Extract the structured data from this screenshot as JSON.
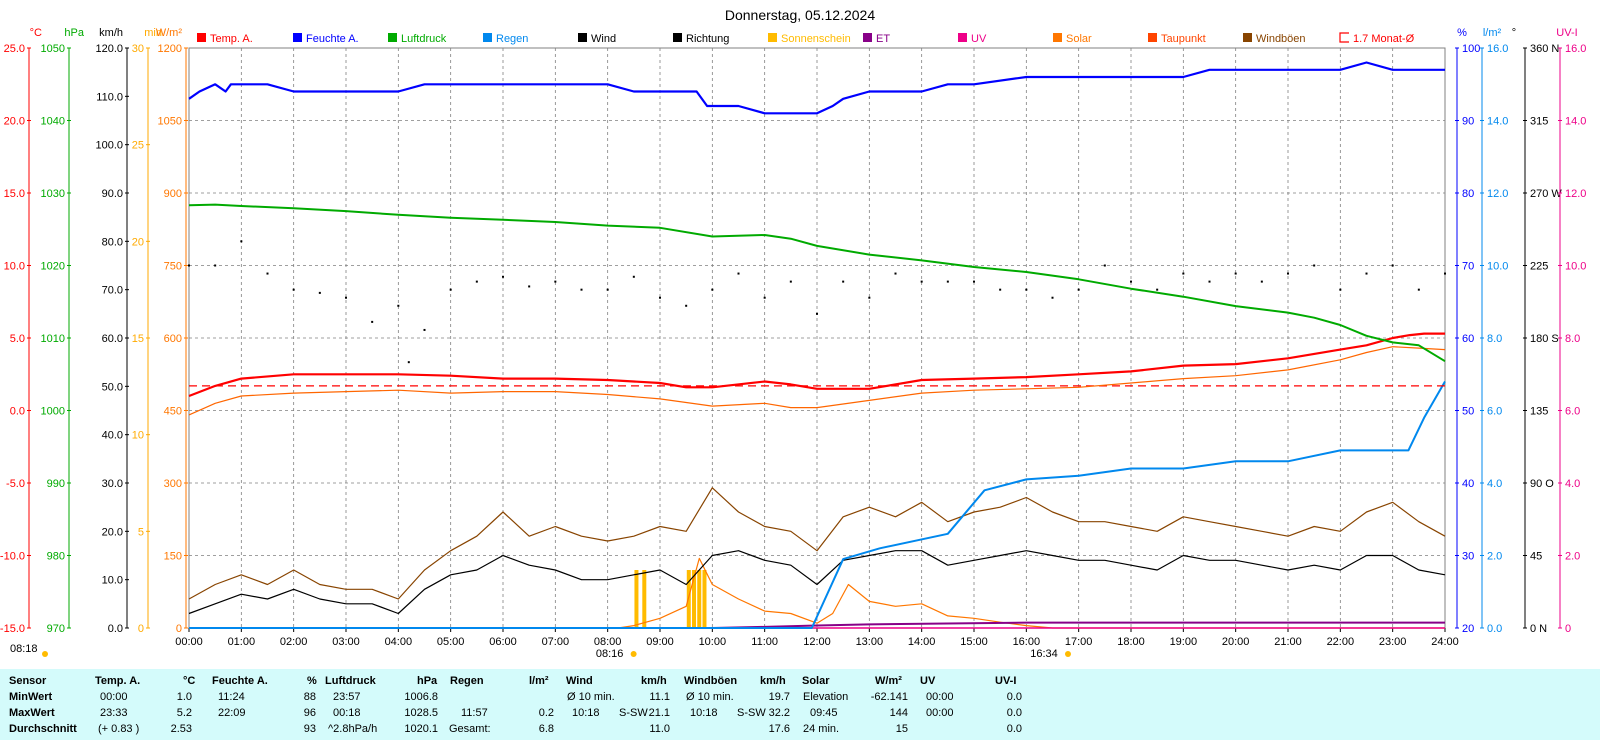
{
  "title": "Donnerstag, 05.12.2024",
  "colors": {
    "temp": "#ff0000",
    "humidity": "#0000ff",
    "pressure": "#00aa00",
    "rain": "#0088ee",
    "wind": "#000000",
    "sunshine": "#ffbb00",
    "solar": "#ff7700",
    "dewpoint": "#ff6600",
    "gusts": "#884400",
    "et": "#880088",
    "uv": "#ee0088",
    "grid": "#808080",
    "stats_bg": "#d4fbfb"
  },
  "legend": [
    {
      "label": "Temp. A.",
      "color": "#ff0000",
      "icon": "filled-square"
    },
    {
      "label": "Feuchte A.",
      "color": "#0000ff",
      "icon": "filled-square"
    },
    {
      "label": "Luftdruck",
      "color": "#00aa00",
      "icon": "filled-square"
    },
    {
      "label": "Regen",
      "color": "#0088ee",
      "icon": "filled-square"
    },
    {
      "label": "Wind",
      "color": "#000000",
      "icon": "filled-square"
    },
    {
      "label": "Richtung",
      "color": "#000000",
      "icon": "filled-square"
    },
    {
      "label": "Sonnenschein",
      "color": "#ffbb00",
      "icon": "filled-square"
    },
    {
      "label": "ET",
      "color": "#880088",
      "icon": "filled-square"
    },
    {
      "label": "UV",
      "color": "#ee0088",
      "icon": "filled-square"
    },
    {
      "label": "Solar",
      "color": "#ff7700",
      "icon": "filled-square"
    },
    {
      "label": "Taupunkt",
      "color": "#ff4400",
      "icon": "filled-square"
    },
    {
      "label": "Windböen",
      "color": "#884400",
      "icon": "filled-square"
    },
    {
      "label": "1.7 Monat-Ø",
      "color": "#ff0000",
      "icon": "bracket-square"
    }
  ],
  "axes_left": [
    {
      "unit": "°C",
      "color": "#ff0000",
      "ticks": [
        "25.0",
        "20.0",
        "15.0",
        "10.0",
        "5.0",
        "0.0",
        "-5.0",
        "-10.0",
        "-15.0"
      ]
    },
    {
      "unit": "hPa",
      "color": "#00aa00",
      "ticks": [
        "1050",
        "1040",
        "1030",
        "1020",
        "1010",
        "1000",
        "990",
        "980",
        "970"
      ]
    },
    {
      "unit": "km/h",
      "color": "#000000",
      "ticks": [
        "120.0",
        "110.0",
        "100.0",
        "90.0",
        "80.0",
        "70.0",
        "60.0",
        "50.0",
        "40.0",
        "30.0",
        "20.0",
        "10.0",
        "0.0"
      ]
    },
    {
      "unit": "min",
      "color": "#ffaa00",
      "ticks": [
        "30",
        "25",
        "20",
        "15",
        "10",
        "5",
        "0"
      ]
    },
    {
      "unit": "W/m²",
      "color": "#ff7700",
      "ticks": [
        "1200",
        "1050",
        "900",
        "750",
        "600",
        "450",
        "300",
        "150",
        "0"
      ]
    }
  ],
  "axes_right": [
    {
      "unit": "%",
      "color": "#0000ff",
      "ticks": [
        "100",
        "90",
        "80",
        "70",
        "60",
        "50",
        "40",
        "30",
        "20"
      ]
    },
    {
      "unit": "l/m²",
      "color": "#0088ee",
      "ticks": [
        "16.0",
        "14.0",
        "12.0",
        "10.0",
        "8.0",
        "6.0",
        "4.0",
        "2.0",
        "0.0"
      ]
    },
    {
      "unit": "°",
      "color": "#000000",
      "ticks": [
        "360 N",
        "315",
        "270 W",
        "225",
        "180 S",
        "135",
        "90 O",
        "45",
        "0 N"
      ]
    },
    {
      "unit": "UV-I",
      "color": "#ee0088",
      "ticks": [
        "16.0",
        "14.0",
        "12.0",
        "10.0",
        "8.0",
        "6.0",
        "4.0",
        "2.0",
        "0"
      ]
    }
  ],
  "x_ticks": [
    "00:00",
    "01:00",
    "02:00",
    "03:00",
    "04:00",
    "05:00",
    "06:00",
    "07:00",
    "08:00",
    "09:00",
    "10:00",
    "11:00",
    "12:00",
    "13:00",
    "14:00",
    "15:00",
    "16:00",
    "17:00",
    "18:00",
    "19:00",
    "20:00",
    "21:00",
    "22:00",
    "23:00",
    "24:00"
  ],
  "sun": {
    "sunrise": "08:16",
    "sunset": "16:34",
    "daylength": "08:18"
  },
  "chart_data": {
    "type": "line",
    "title": "Donnerstag, 05.12.2024",
    "x_unit": "hours",
    "xlim": [
      0,
      24
    ],
    "series": [
      {
        "name": "Temp. A.",
        "unit": "°C",
        "ylim": [
          -15,
          25
        ],
        "x": [
          0,
          0.5,
          1,
          2,
          3,
          4,
          5,
          6,
          7,
          8,
          9,
          9.5,
          10,
          11,
          11.5,
          12,
          13,
          14,
          15,
          16,
          17,
          18,
          19,
          20,
          21,
          22,
          22.5,
          23,
          23.33,
          23.6,
          24
        ],
        "y": [
          1.0,
          1.7,
          2.2,
          2.5,
          2.5,
          2.5,
          2.4,
          2.2,
          2.2,
          2.1,
          1.9,
          1.6,
          1.6,
          2.0,
          1.8,
          1.5,
          1.5,
          2.1,
          2.2,
          2.3,
          2.5,
          2.7,
          3.1,
          3.2,
          3.6,
          4.2,
          4.5,
          5.0,
          5.2,
          5.3,
          5.3
        ]
      },
      {
        "name": "Taupunkt",
        "unit": "°C",
        "ylim": [
          -15,
          25
        ],
        "x": [
          0,
          0.5,
          1,
          2,
          3,
          4,
          5,
          6,
          7,
          8,
          9,
          10,
          11,
          11.5,
          12,
          13,
          14,
          15,
          16,
          17,
          18,
          19,
          20,
          21,
          22,
          22.5,
          23,
          23.5,
          24
        ],
        "y": [
          -0.3,
          0.5,
          1.0,
          1.2,
          1.3,
          1.4,
          1.2,
          1.3,
          1.3,
          1.1,
          0.8,
          0.3,
          0.5,
          0.2,
          0.2,
          0.7,
          1.2,
          1.4,
          1.5,
          1.6,
          1.9,
          2.2,
          2.4,
          2.8,
          3.5,
          4.0,
          4.4,
          4.3,
          4.2
        ]
      },
      {
        "name": "Feuchte A.",
        "unit": "%",
        "ylim": [
          20,
          100
        ],
        "x": [
          0,
          0.2,
          0.5,
          0.7,
          0.8,
          1,
          1.5,
          2,
          2.5,
          3,
          4,
          4.5,
          5,
          6,
          7,
          8,
          8.5,
          9,
          9.7,
          9.9,
          10,
          10.5,
          11,
          11.2,
          12,
          12.3,
          12.5,
          13,
          13.5,
          14,
          14.5,
          15,
          16,
          17,
          18,
          19,
          19.5,
          20,
          21,
          22,
          22.5,
          23,
          24
        ],
        "y": [
          93,
          94,
          95,
          94,
          95,
          95,
          95,
          94,
          94,
          94,
          94,
          95,
          95,
          95,
          95,
          95,
          94,
          94,
          94,
          92,
          92,
          92,
          91,
          91,
          91,
          92,
          93,
          94,
          94,
          94,
          95,
          95,
          96,
          96,
          96,
          96,
          97,
          97,
          97,
          97,
          98,
          97,
          97
        ]
      },
      {
        "name": "Luftdruck",
        "unit": "hPa",
        "ylim": [
          970,
          1050
        ],
        "x": [
          0,
          0.5,
          1,
          2,
          3,
          4,
          5,
          6,
          7,
          8,
          9,
          10,
          11,
          11.5,
          12,
          13,
          14,
          15,
          16,
          17,
          18,
          19,
          20,
          21,
          21.5,
          22,
          22.5,
          23,
          23.5,
          24
        ],
        "y": [
          1028.3,
          1028.4,
          1028.2,
          1027.9,
          1027.5,
          1027.0,
          1026.6,
          1026.3,
          1026.0,
          1025.5,
          1025.2,
          1024.0,
          1024.2,
          1023.7,
          1022.7,
          1021.5,
          1020.7,
          1019.8,
          1019.1,
          1018.1,
          1016.8,
          1015.7,
          1014.4,
          1013.5,
          1012.8,
          1011.8,
          1010.3,
          1009.4,
          1009.0,
          1006.8
        ]
      },
      {
        "name": "Regen",
        "unit": "l/m²",
        "ylim": [
          0,
          16
        ],
        "x": [
          0,
          11.9,
          12.5,
          13.2,
          14.5,
          15.2,
          16,
          17,
          18,
          19,
          20,
          21,
          22,
          23,
          23.3,
          23.6,
          24
        ],
        "y": [
          0,
          0,
          1.9,
          2.2,
          2.6,
          3.8,
          4.1,
          4.2,
          4.4,
          4.4,
          4.6,
          4.6,
          4.9,
          4.9,
          4.9,
          5.8,
          6.8
        ]
      },
      {
        "name": "Wind",
        "unit": "km/h",
        "ylim": [
          0,
          120
        ],
        "x": [
          0,
          0.5,
          1,
          1.5,
          2,
          2.5,
          3,
          3.5,
          4,
          4.5,
          5,
          5.5,
          6,
          6.5,
          7,
          7.5,
          8,
          8.5,
          9,
          9.5,
          10,
          10.5,
          11,
          11.5,
          12,
          12.5,
          13,
          13.5,
          14,
          14.5,
          15,
          15.5,
          16,
          16.5,
          17,
          17.5,
          18,
          18.5,
          19,
          19.5,
          20,
          20.5,
          21,
          21.5,
          22,
          22.5,
          23,
          23.5,
          24
        ],
        "y": [
          3,
          5,
          7,
          6,
          8,
          6,
          5,
          5,
          3,
          8,
          11,
          12,
          15,
          13,
          12,
          10,
          10,
          11,
          12,
          9,
          15,
          16,
          14,
          13,
          9,
          14,
          15,
          16,
          16,
          13,
          14,
          15,
          16,
          15,
          14,
          14,
          13,
          12,
          15,
          14,
          14,
          13,
          12,
          13,
          12,
          15,
          15,
          12,
          11
        ]
      },
      {
        "name": "Windböen",
        "unit": "km/h",
        "ylim": [
          0,
          120
        ],
        "x": [
          0,
          0.5,
          1,
          1.5,
          2,
          2.5,
          3,
          3.5,
          4,
          4.5,
          5,
          5.5,
          6,
          6.5,
          7,
          7.5,
          8,
          8.5,
          9,
          9.5,
          10,
          10.5,
          11,
          11.5,
          12,
          12.5,
          13,
          13.5,
          14,
          14.5,
          15,
          15.5,
          16,
          16.5,
          17,
          17.5,
          18,
          18.5,
          19,
          19.5,
          20,
          20.5,
          21,
          21.5,
          22,
          22.5,
          23,
          23.5,
          24
        ],
        "y": [
          6,
          9,
          11,
          9,
          12,
          9,
          8,
          8,
          6,
          12,
          16,
          19,
          24,
          19,
          21,
          19,
          18,
          19,
          21,
          20,
          29,
          24,
          21,
          20,
          16,
          23,
          25,
          23,
          26,
          22,
          24,
          25,
          27,
          24,
          22,
          22,
          21,
          20,
          23,
          22,
          21,
          20,
          19,
          21,
          20,
          24,
          26,
          22,
          19
        ]
      },
      {
        "name": "Richtung",
        "unit": "°",
        "ylim": [
          0,
          360
        ],
        "type": "scatter",
        "x": [
          0,
          0.5,
          1,
          1.5,
          2,
          2.5,
          3,
          3.5,
          4,
          4.2,
          4.5,
          5,
          5.5,
          6,
          6.5,
          7,
          7.5,
          8,
          8.5,
          9,
          9.5,
          10,
          10.5,
          11,
          11.5,
          12,
          12.5,
          13,
          13.5,
          14,
          14.5,
          15,
          15.5,
          16,
          16.5,
          17,
          17.5,
          18,
          18.5,
          19,
          19.5,
          20,
          20.5,
          21,
          21.5,
          22,
          22.5,
          23,
          23.5,
          24
        ],
        "y": [
          225,
          225,
          240,
          220,
          210,
          208,
          205,
          190,
          200,
          165,
          185,
          210,
          215,
          218,
          212,
          215,
          210,
          210,
          218,
          205,
          200,
          210,
          220,
          205,
          215,
          195,
          215,
          205,
          220,
          215,
          215,
          215,
          210,
          210,
          205,
          210,
          225,
          215,
          210,
          220,
          215,
          220,
          215,
          220,
          225,
          210,
          220,
          225,
          210,
          220
        ]
      },
      {
        "name": "Solar",
        "unit": "W/m²",
        "ylim": [
          0,
          1200
        ],
        "x": [
          0,
          8.2,
          8.5,
          9,
          9.5,
          9.75,
          10,
          10.5,
          11,
          11.5,
          12,
          12.3,
          12.6,
          13,
          13.5,
          14,
          14.5,
          15,
          15.5,
          16,
          16.5,
          24
        ],
        "y": [
          0,
          0,
          5,
          20,
          45,
          144,
          90,
          60,
          35,
          30,
          10,
          30,
          90,
          55,
          45,
          50,
          25,
          20,
          12,
          5,
          0,
          0
        ]
      },
      {
        "name": "Sonnenschein",
        "unit": "min",
        "ylim": [
          0,
          30
        ],
        "type": "bar",
        "x": [
          8.55,
          8.7,
          9.55,
          9.65,
          9.75,
          9.85
        ],
        "y": [
          3,
          3,
          3,
          3,
          3,
          3
        ]
      },
      {
        "name": "ET",
        "unit": "l/m²",
        "ylim": [
          0,
          16
        ],
        "x": [
          0,
          10,
          11,
          12,
          13,
          16,
          24
        ],
        "y": [
          0,
          0,
          0.03,
          0.07,
          0.1,
          0.15,
          0.15
        ]
      },
      {
        "name": "UV",
        "unit": "UV-I",
        "ylim": [
          0,
          16
        ],
        "x": [
          0,
          24
        ],
        "y": [
          0,
          0
        ]
      },
      {
        "name": "1.7 Monat-Ø",
        "unit": "°C",
        "ylim": [
          -15,
          25
        ],
        "style": "dashed",
        "x": [
          0,
          24
        ],
        "y": [
          1.7,
          1.7
        ]
      }
    ]
  },
  "stats": {
    "headers": [
      {
        "label": "Sensor",
        "unit": ""
      },
      {
        "label": "Temp. A.",
        "unit": "°C"
      },
      {
        "label": "Feuchte A.",
        "unit": "%"
      },
      {
        "label": "Luftdruck",
        "unit": "hPa"
      },
      {
        "label": "Regen",
        "unit": "l/m²"
      },
      {
        "label": "Wind",
        "unit": "km/h"
      },
      {
        "label": "Windböen",
        "unit": "km/h"
      },
      {
        "label": "Solar",
        "unit": "W/m²"
      },
      {
        "label": "UV",
        "unit": "UV-I"
      }
    ],
    "row_labels": [
      "MinWert",
      "MaxWert",
      "Durchschnitt"
    ],
    "temp": [
      [
        "00:00",
        "1.0"
      ],
      [
        "23:33",
        "5.2"
      ],
      [
        "(+ 0.83 )",
        "2.53"
      ]
    ],
    "humidity": [
      [
        "11:24",
        "88"
      ],
      [
        "22:09",
        "96"
      ],
      [
        "",
        "93"
      ]
    ],
    "pressure": [
      [
        "23:57",
        "1006.8"
      ],
      [
        "00:18",
        "1028.5"
      ],
      [
        "^2.8hPa/h",
        "1020.1"
      ]
    ],
    "rain": [
      [
        "",
        ""
      ],
      [
        "11:57",
        "0.2"
      ],
      [
        "Gesamt:",
        "6.8"
      ]
    ],
    "wind": [
      [
        "Ø 10 min.",
        "",
        "11.1"
      ],
      [
        "10:18",
        "S-SW",
        "21.1"
      ],
      [
        "",
        "",
        "11.0"
      ]
    ],
    "gusts": [
      [
        "Ø 10 min.",
        "",
        "19.7"
      ],
      [
        "10:18",
        "S-SW",
        "32.2"
      ],
      [
        "",
        "",
        "17.6"
      ]
    ],
    "solar": [
      [
        "Elevation",
        "-62.141"
      ],
      [
        "09:45",
        "144"
      ],
      [
        "24 min.",
        "15"
      ]
    ],
    "uv": [
      [
        "00:00",
        "0.0"
      ],
      [
        "00:00",
        "0.0"
      ],
      [
        "",
        "0.0"
      ]
    ]
  }
}
